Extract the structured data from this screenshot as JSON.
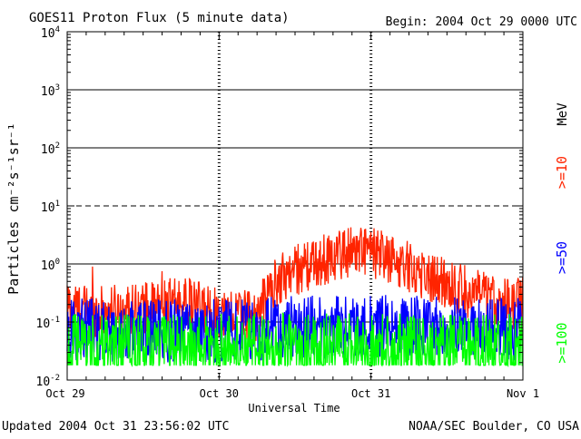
{
  "header": {
    "title": "GOES11 Proton Flux (5 minute data)",
    "begin": "Begin: 2004 Oct 29 0000 UTC"
  },
  "footer": {
    "updated": "Updated 2004 Oct 31 23:56:02 UTC",
    "credit": "NOAA/SEC Boulder, CO USA"
  },
  "colors": {
    "ge10": "#ff2400",
    "ge50": "#0000ff",
    "ge100": "#00ff00",
    "axis": "#000000"
  },
  "chart_data": {
    "type": "line",
    "title": "GOES11 Proton Flux (5 minute data)",
    "xlabel": "Universal Time",
    "ylabel": "Particles cm⁻²s⁻¹sr⁻¹",
    "yscale": "log",
    "ylim": [
      0.01,
      10000
    ],
    "xlim_hours": [
      0,
      72
    ],
    "x_tick_labels": [
      {
        "hour": 0,
        "label": "Oct 29"
      },
      {
        "hour": 24,
        "label": "Oct 30"
      },
      {
        "hour": 48,
        "label": "Oct 31"
      },
      {
        "hour": 72,
        "label": "Nov 1"
      }
    ],
    "y_ticks": [
      {
        "exp": -2,
        "base": "10",
        "sup": "-2"
      },
      {
        "exp": -1,
        "base": "10",
        "sup": "-1"
      },
      {
        "exp": 0,
        "base": "10",
        "sup": "0"
      },
      {
        "exp": 1,
        "base": "10",
        "sup": "1"
      },
      {
        "exp": 2,
        "base": "10",
        "sup": "2"
      },
      {
        "exp": 3,
        "base": "10",
        "sup": "3"
      },
      {
        "exp": 4,
        "base": "10",
        "sup": "4"
      }
    ],
    "solid_gridlines_exp": [
      -1,
      0,
      2,
      3
    ],
    "dashed_gridlines_exp": [
      1
    ],
    "energy_unit": "MeV",
    "legend": [
      {
        "name": ">=10",
        "color": "#ff2400"
      },
      {
        "name": ">=50",
        "color": "#0000ff"
      },
      {
        "name": ">=100",
        "color": "#00ff00"
      }
    ],
    "series": [
      {
        "name": ">=10 MeV",
        "color": "#ff2400",
        "time_step_hours": 0.0833,
        "anchors_hours": [
          0,
          3,
          6,
          10,
          14,
          18,
          22,
          24,
          26,
          30,
          32,
          34,
          36,
          38,
          40,
          42,
          44,
          46,
          48,
          50,
          52,
          54,
          56,
          58,
          60,
          62,
          64,
          66,
          68,
          70,
          72
        ],
        "anchors_values": [
          0.2,
          0.16,
          0.15,
          0.17,
          0.18,
          0.22,
          0.16,
          0.15,
          0.14,
          0.13,
          0.35,
          0.6,
          0.8,
          0.9,
          1.1,
          1.4,
          1.6,
          1.8,
          1.6,
          1.3,
          1.1,
          0.9,
          0.7,
          0.55,
          0.45,
          0.38,
          0.3,
          0.27,
          0.22,
          0.2,
          0.22
        ],
        "noise_log_spread": 0.45,
        "spikes": [
          {
            "hour": 4,
            "value": 0.9
          },
          {
            "hour": 15,
            "value": 0.75
          },
          {
            "hour": 45,
            "value": 2.3
          },
          {
            "hour": 37,
            "value": 1.4
          }
        ]
      },
      {
        "name": ">=50 MeV",
        "color": "#0000ff",
        "time_step_hours": 0.0833,
        "anchors_hours": [
          0,
          12,
          24,
          36,
          48,
          60,
          72
        ],
        "anchors_values": [
          0.075,
          0.07,
          0.07,
          0.08,
          0.085,
          0.08,
          0.075
        ],
        "noise_log_spread": 0.55,
        "spikes": [
          {
            "hour": 33,
            "value": 0.2
          },
          {
            "hour": 40,
            "value": 0.16
          }
        ]
      },
      {
        "name": ">=100 MeV",
        "color": "#00ff00",
        "time_step_hours": 0.0833,
        "anchors_hours": [
          0,
          24,
          48,
          72
        ],
        "anchors_values": [
          0.035,
          0.035,
          0.036,
          0.035
        ],
        "noise_log_spread": 0.6,
        "floor": 0.018,
        "spikes": []
      }
    ]
  }
}
